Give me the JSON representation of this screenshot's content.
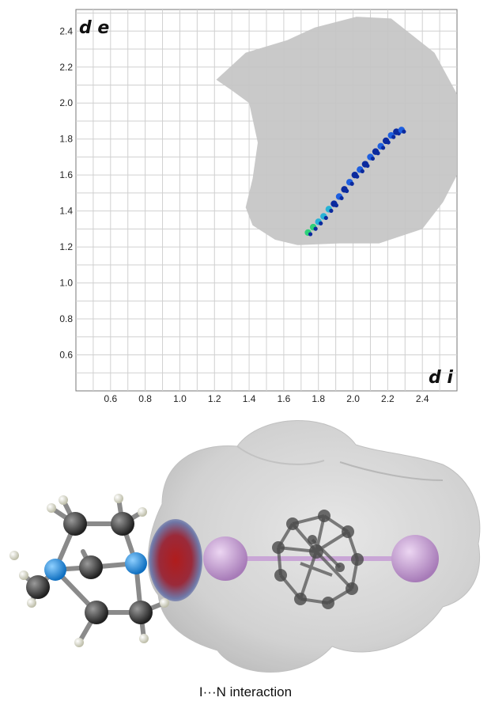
{
  "chart_data": {
    "type": "scatter",
    "xlabel": "d i",
    "ylabel": "d e",
    "xlim": [
      0.4,
      2.6
    ],
    "ylim": [
      0.4,
      2.52
    ],
    "xticks": [
      "0.6",
      "0.8",
      "1.0",
      "1.2",
      "1.4",
      "1.6",
      "1.8",
      "2.0",
      "2.2",
      "2.4"
    ],
    "yticks": [
      "0.6",
      "0.8",
      "1.0",
      "1.2",
      "1.4",
      "1.6",
      "1.8",
      "2.0",
      "2.2",
      "2.4"
    ],
    "grid": true,
    "background_region": {
      "color": "#c4c4c4",
      "outline": [
        [
          1.21,
          2.13
        ],
        [
          1.38,
          2.28
        ],
        [
          1.62,
          2.35
        ],
        [
          1.78,
          2.42
        ],
        [
          2.02,
          2.48
        ],
        [
          2.22,
          2.47
        ],
        [
          2.47,
          2.28
        ],
        [
          2.6,
          2.05
        ],
        [
          2.6,
          1.6
        ],
        [
          2.52,
          1.45
        ],
        [
          2.4,
          1.3
        ],
        [
          2.15,
          1.22
        ],
        [
          1.92,
          1.22
        ],
        [
          1.68,
          1.21
        ],
        [
          1.55,
          1.24
        ],
        [
          1.42,
          1.32
        ],
        [
          1.38,
          1.42
        ],
        [
          1.42,
          1.58
        ],
        [
          1.45,
          1.78
        ],
        [
          1.4,
          2.0
        ],
        [
          1.3,
          2.07
        ]
      ]
    },
    "highlight_series": {
      "name": "",
      "colors": [
        "#0b2a9e",
        "#1e5fe0",
        "#27b3d6",
        "#2ed17a"
      ],
      "points": [
        [
          1.74,
          1.28
        ],
        [
          1.77,
          1.31
        ],
        [
          1.8,
          1.34
        ],
        [
          1.83,
          1.37
        ],
        [
          1.86,
          1.41
        ],
        [
          1.89,
          1.44
        ],
        [
          1.92,
          1.48
        ],
        [
          1.95,
          1.52
        ],
        [
          1.98,
          1.56
        ],
        [
          2.01,
          1.6
        ],
        [
          2.04,
          1.63
        ],
        [
          2.07,
          1.66
        ],
        [
          2.1,
          1.7
        ],
        [
          2.13,
          1.73
        ],
        [
          2.16,
          1.76
        ],
        [
          2.19,
          1.79
        ],
        [
          2.22,
          1.82
        ],
        [
          2.25,
          1.84
        ],
        [
          2.28,
          1.85
        ]
      ]
    }
  },
  "figure": {
    "caption": "I···N interaction",
    "surface_color": "#d9d9d9",
    "contact_spot_color": "#b01c1c",
    "iodine_color": "#c79ad6",
    "nitrogen_color": "#1f8ee0",
    "carbon_color": "#3a3a3a",
    "hydrogen_color": "#f0f0e0"
  }
}
